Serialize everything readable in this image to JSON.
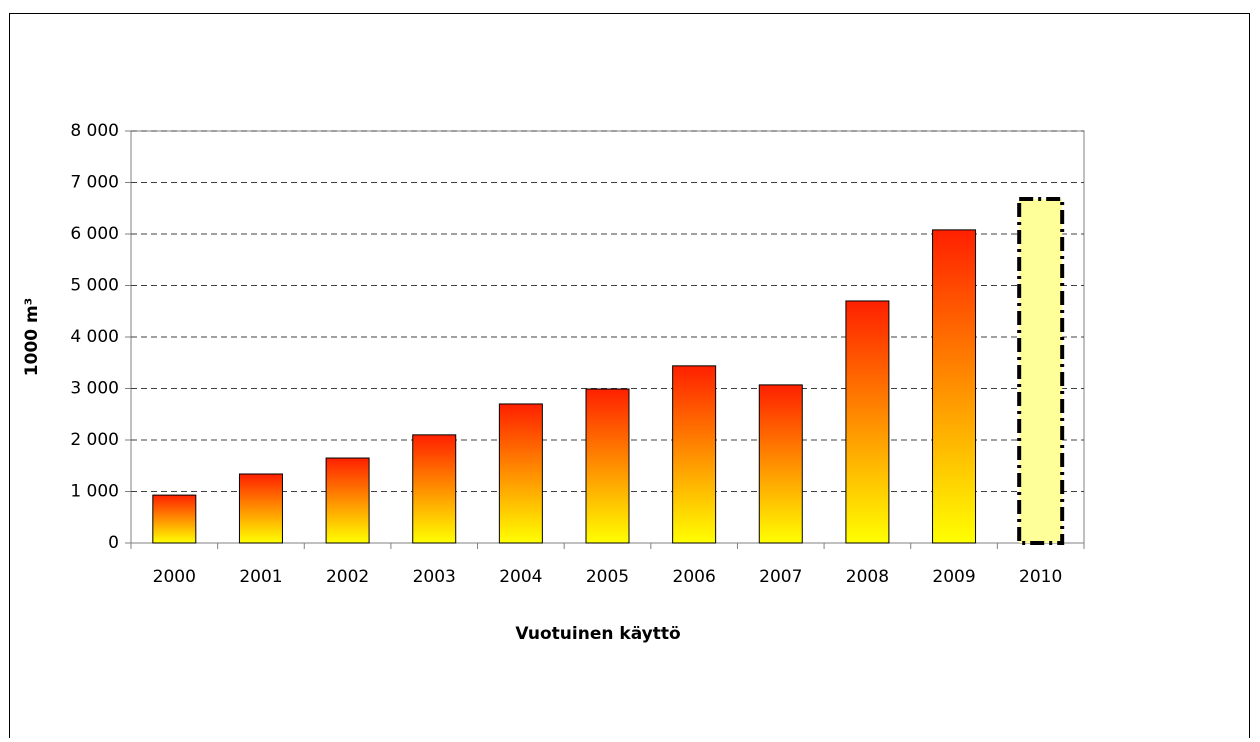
{
  "chart_data": {
    "type": "bar",
    "y_label": "1000 m³",
    "x_label": "Vuotuinen käyttö",
    "categories": [
      "2000",
      "2001",
      "2002",
      "2003",
      "2004",
      "2005",
      "2006",
      "2007",
      "2008",
      "2009",
      "2010"
    ],
    "values": [
      930,
      1340,
      1650,
      2100,
      2700,
      2990,
      3440,
      3070,
      4700,
      6080,
      6680
    ],
    "gradient": [
      "#ffff00",
      "#ff2000"
    ],
    "highlight_index": 10,
    "highlight_color": "#ffff99",
    "ylim": [
      0,
      8000
    ],
    "yticks": [
      0,
      {
        "value": 1000,
        "label": "1 000"
      },
      {
        "value": 2000,
        "label": "2 000"
      },
      {
        "value": 3000,
        "label": "3 000"
      },
      {
        "value": 4000,
        "label": "4 000"
      },
      {
        "value": 5000,
        "label": "5 000"
      },
      {
        "value": 6000,
        "label": "6 000"
      },
      {
        "value": 7000,
        "label": "7 000"
      },
      {
        "value": 8000,
        "label": "8 000"
      }
    ],
    "grid": true
  }
}
